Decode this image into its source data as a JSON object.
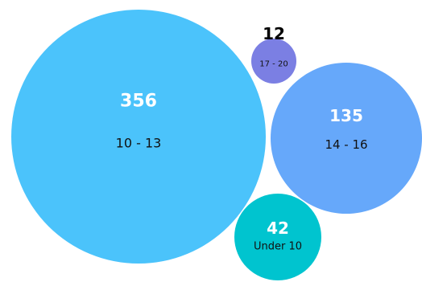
{
  "chart_data": {
    "type": "bubble",
    "title": "",
    "series": [
      {
        "label": "10 - 13",
        "value": 356,
        "color": "#4bc3fb"
      },
      {
        "label": "14 - 16",
        "value": 135,
        "color": "#66a8fa"
      },
      {
        "label": "Under 10",
        "value": 42,
        "color": "#00c4cf"
      },
      {
        "label": "17 - 20",
        "value": 12,
        "color": "#7b7fe3"
      }
    ]
  }
}
